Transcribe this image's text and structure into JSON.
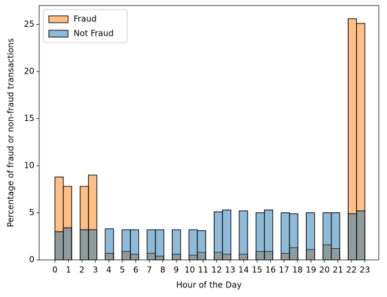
{
  "chart_data": {
    "type": "histogram",
    "x_label": "Hour of the Day",
    "y_label": "Percentage of fraud or non-fraud transactions",
    "bins": [
      0,
      0.622,
      1.243,
      1.865,
      2.486,
      3.108,
      3.73,
      4.351,
      4.973,
      5.595,
      6.216,
      6.838,
      7.459,
      8.081,
      8.703,
      9.324,
      9.946,
      10.568,
      11.189,
      11.811,
      12.432,
      13.054,
      13.676,
      14.297,
      14.919,
      15.541,
      16.162,
      16.784,
      17.405,
      18.027,
      18.649,
      19.27,
      19.892,
      20.514,
      21.135,
      21.757,
      22.378,
      23
    ],
    "series": [
      {
        "name": "Fraud",
        "color": "#ff7f0e",
        "values": [
          8.8,
          7.8,
          0,
          7.8,
          9.0,
          0,
          0.7,
          0,
          0.9,
          0.6,
          0,
          0.7,
          0.4,
          0,
          0.6,
          0,
          0.5,
          0.8,
          0,
          0.8,
          0.6,
          0,
          0.6,
          0,
          0.9,
          0.9,
          0,
          0.7,
          1.3,
          0,
          1.1,
          0,
          1.6,
          1.2,
          0,
          25.6,
          25.1
        ]
      },
      {
        "name": "Not Fraud",
        "color": "#1f77b4",
        "values": [
          3.0,
          3.4,
          0,
          3.2,
          3.2,
          0,
          3.3,
          0,
          3.2,
          3.2,
          0,
          3.2,
          3.2,
          0,
          3.2,
          0,
          3.2,
          3.1,
          0,
          5.1,
          5.3,
          0,
          5.2,
          0,
          5.0,
          5.3,
          0,
          5.0,
          4.9,
          0,
          5.0,
          0,
          5.0,
          5.0,
          0,
          4.9,
          5.2
        ]
      }
    ],
    "xlim": [
      -1.17,
      24.03
    ],
    "xticks": [
      0,
      1,
      2,
      3,
      4,
      5,
      6,
      7,
      8,
      9,
      10,
      11,
      12,
      13,
      14,
      15,
      16,
      17,
      18,
      19,
      20,
      21,
      22,
      23
    ],
    "ylim": [
      0,
      27
    ],
    "yticks": [
      0,
      5,
      10,
      15,
      20,
      25
    ],
    "legend": "upper left"
  }
}
